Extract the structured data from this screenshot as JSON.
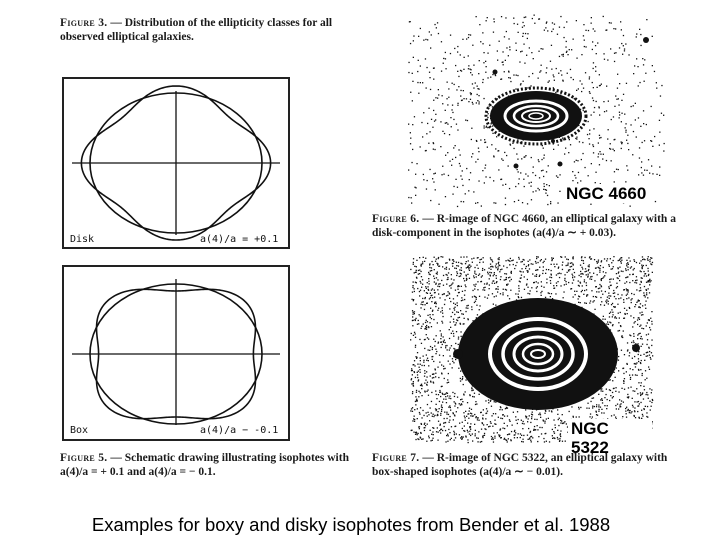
{
  "fig3": {
    "label": "Figure 3.",
    "text": " — Distribution of the ellipticity classes for all",
    "text2": "observed elliptical galaxies."
  },
  "fig5": {
    "label": "Figure 5.",
    "text": " — Schematic drawing illustrating isophotes with",
    "text2": "a(4)/a = + 0.1 and a(4)/a = − 0.1.",
    "disk_panel": {
      "name": "Disk",
      "value": "a(4)/a = +0.1"
    },
    "box_panel": {
      "name": "Box",
      "value": "a(4)/a − -0.1"
    }
  },
  "fig6": {
    "label": "Figure 6.",
    "text": " — R-image of NGC 4660, an elliptical galaxy with a",
    "text2": "disk-component in the isophotes (a(4)/a ∼ + 0.03).",
    "image_label": "NGC 4660"
  },
  "fig7": {
    "label": "Figure 7.",
    "text": " — R-image of NGC 5322, an elliptical galaxy with",
    "text2": "box-shaped isophotes (a(4)/a ∼ − 0.01).",
    "image_label": "NGC 5322"
  },
  "footer": "Examples for boxy and disky isophotes from Bender et al. 1988",
  "colors": {
    "ink": "#111111",
    "background": "#ffffff"
  }
}
